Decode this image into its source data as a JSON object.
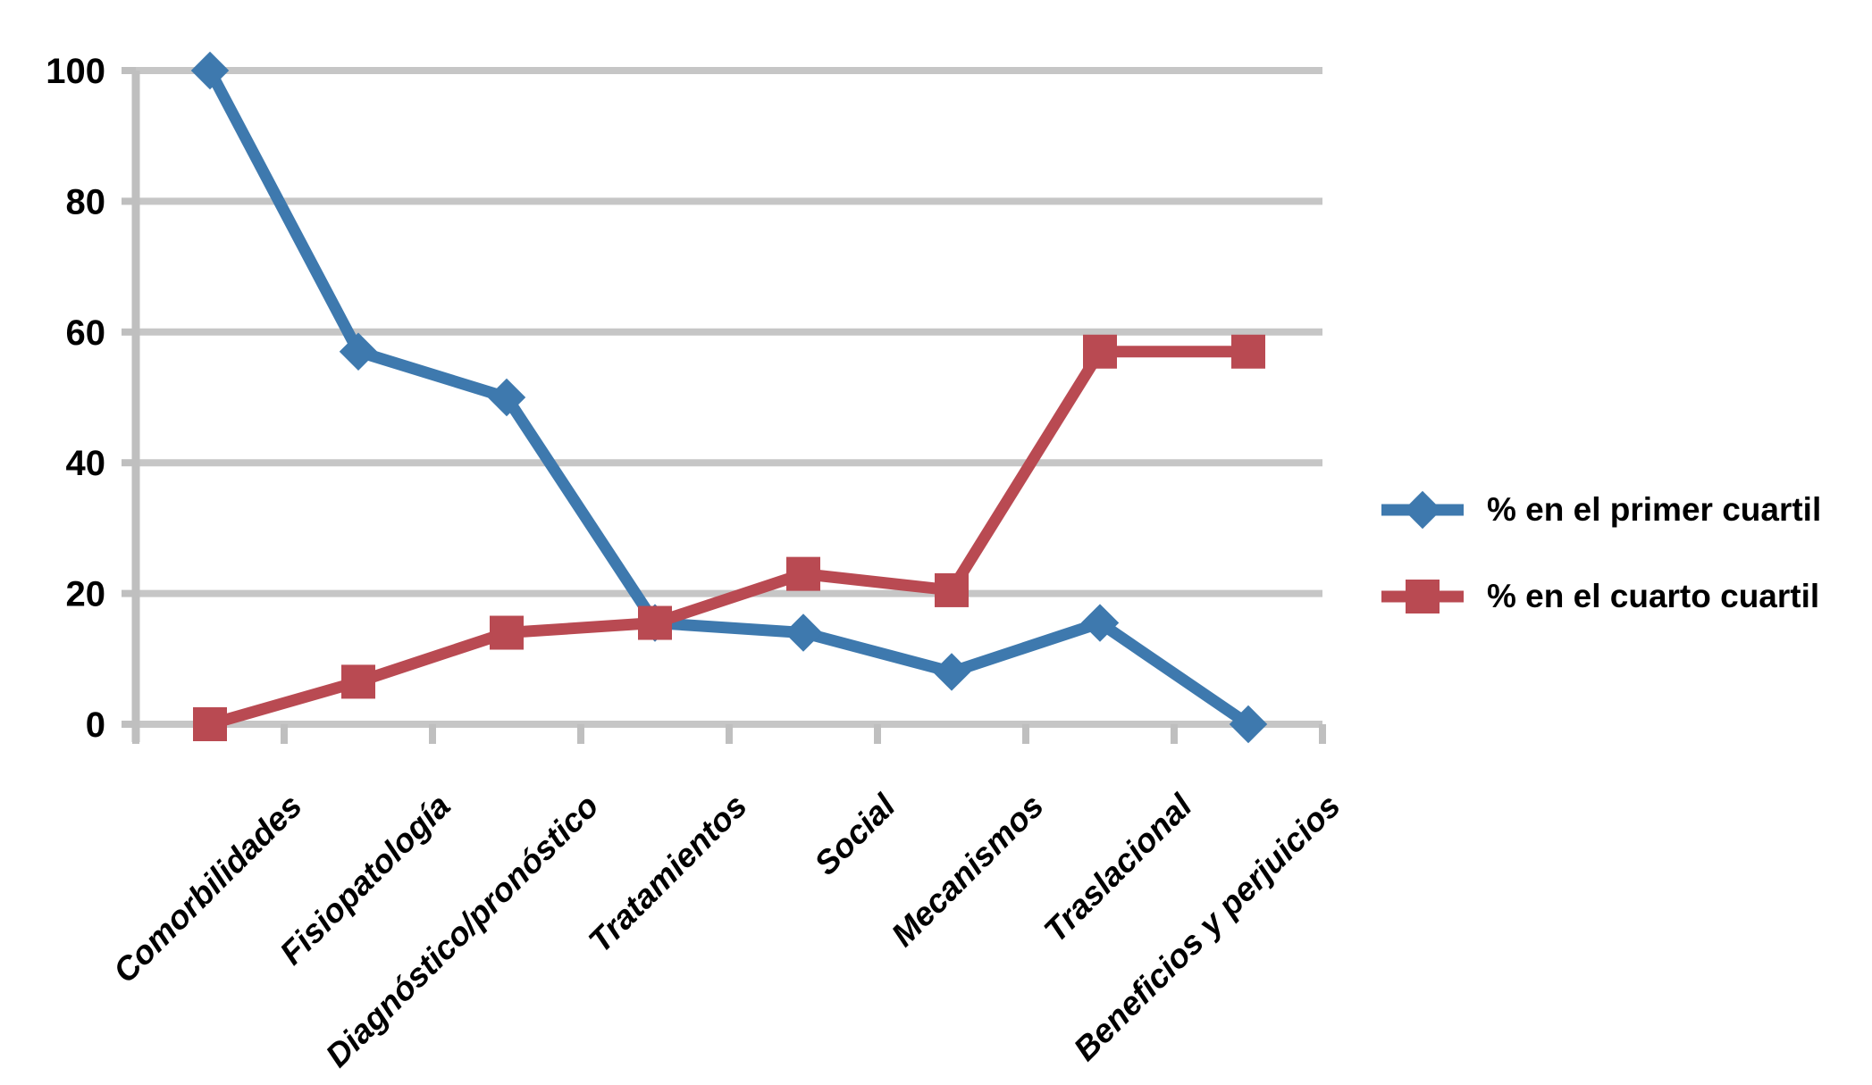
{
  "chart_data": {
    "type": "line",
    "categories": [
      "Comorbilidades",
      "Fisiopatología",
      "Diagnóstico/pronóstico",
      "Tratamientos",
      "Social",
      "Mecanismos",
      "Traslacional",
      "Beneficios y perjuicios"
    ],
    "series": [
      {
        "name": "% en el primer cuartil",
        "marker": "diamond",
        "color": "#3E79AE",
        "values": [
          100,
          57,
          50,
          15.5,
          14,
          8,
          15.5,
          0
        ]
      },
      {
        "name": "% en el cuarto cuartil",
        "marker": "square",
        "color": "#B94A52",
        "values": [
          0,
          6.5,
          14,
          15.5,
          23,
          20.5,
          57,
          57
        ]
      }
    ],
    "title": "",
    "xlabel": "",
    "ylabel": "",
    "ylim": [
      0,
      100
    ],
    "ytick_interval": 20,
    "ytick_labels": [
      "0",
      "20",
      "40",
      "60",
      "80",
      "100"
    ],
    "grid": true,
    "legend_position": "right",
    "gridline_color": "#C6C6C6",
    "axis_color": "#BFBFBF",
    "text_color": "#000000",
    "background_color": "#FFFFFF"
  }
}
